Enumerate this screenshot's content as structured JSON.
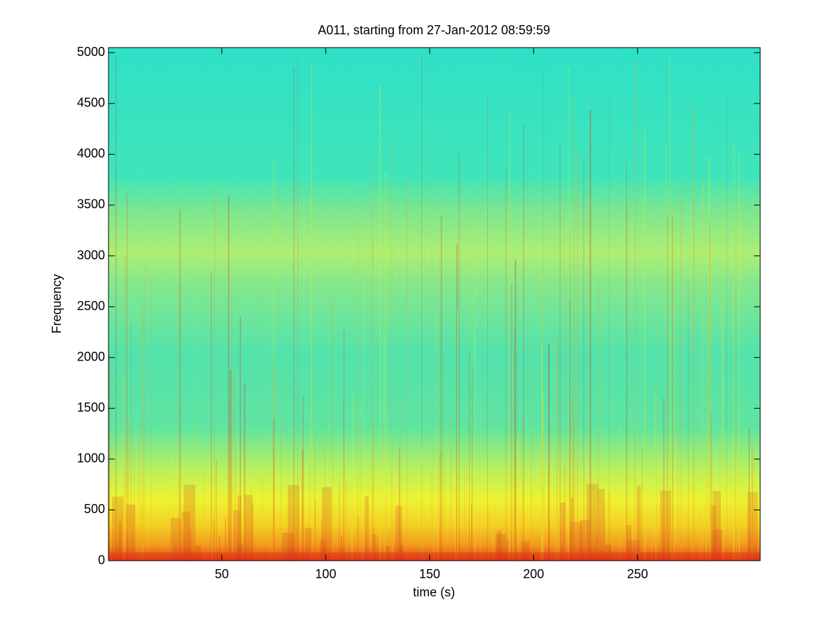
{
  "chart_data": {
    "type": "spectrogram",
    "title": "A011, starting from 27-Jan-2012 08:59:59",
    "x_label": "time (s)",
    "y_label": "Frequency",
    "xlim": [
      -4.5,
      309
    ],
    "xticks": [
      50,
      100,
      150,
      200,
      250
    ],
    "ylim": [
      0,
      5050
    ],
    "yticks": [
      0,
      500,
      1000,
      1500,
      2000,
      2500,
      3000,
      3500,
      4000,
      4500,
      5000
    ]
  }
}
